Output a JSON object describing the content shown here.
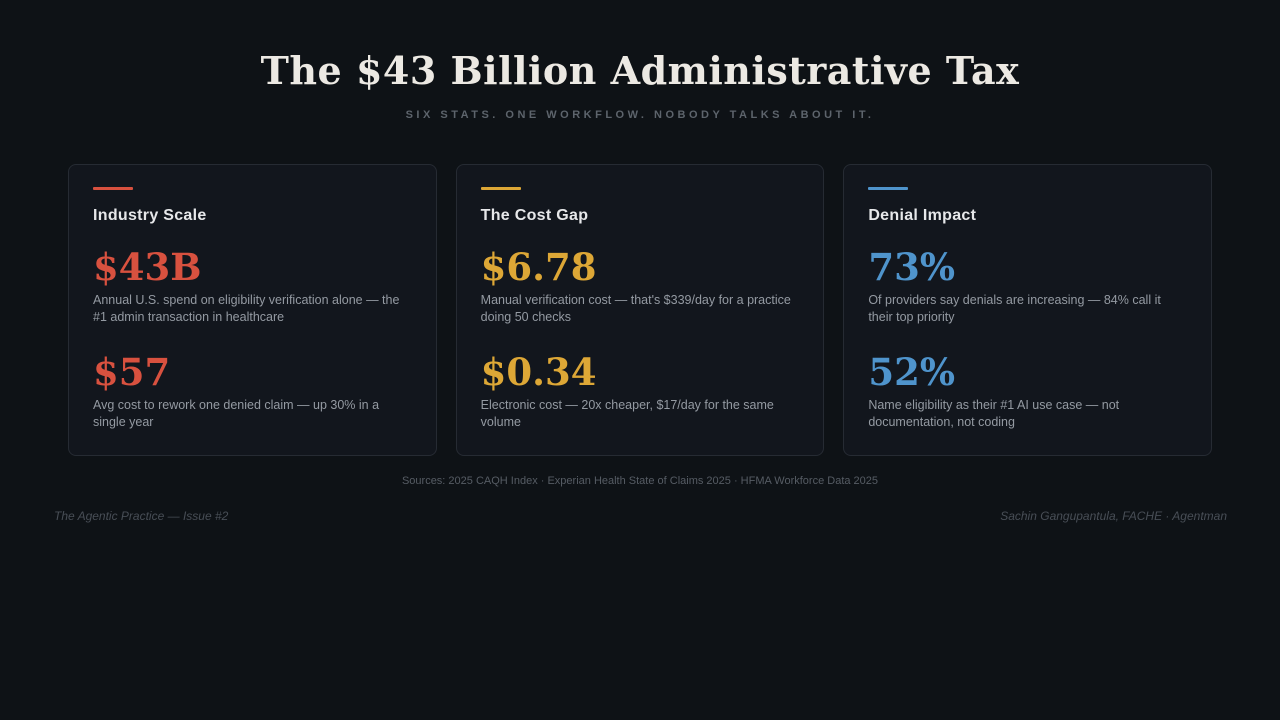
{
  "page": {
    "title": "The $43 Billion Administrative Tax",
    "subtitle": "SIX STATS. ONE WORKFLOW. NOBODY TALKS ABOUT IT.",
    "sources": "Sources: 2025 CAQH Index · Experian Health State of Claims 2025 · HFMA Workforce Data 2025",
    "footer_left": "The Agentic Practice — Issue #2",
    "footer_right": "Sachin Gangupantula, FACHE · Agentman"
  },
  "colors": {
    "background": "#0e1216",
    "card_background": "#12161d",
    "card_border": "#262b33",
    "red_accent": "#d8513f",
    "gold_accent": "#dda736",
    "blue_accent": "#4f94cc"
  },
  "cards": [
    {
      "title": "Industry Scale",
      "accent_color": "#d8513f",
      "stats": [
        {
          "value": "$43B",
          "description": "Annual U.S. spend on eligibility verification alone — the #1 admin transaction in healthcare"
        },
        {
          "value": "$57",
          "description": "Avg cost to rework one denied claim — up 30% in a single year"
        }
      ]
    },
    {
      "title": "The Cost Gap",
      "accent_color": "#dda736",
      "stats": [
        {
          "value": "$6.78",
          "description": "Manual verification cost — that's $339/day for a practice doing 50 checks"
        },
        {
          "value": "$0.34",
          "description": "Electronic cost — 20x cheaper, $17/day for the same volume"
        }
      ]
    },
    {
      "title": "Denial Impact",
      "accent_color": "#4f94cc",
      "stats": [
        {
          "value": "73%",
          "description": "Of providers say denials are increasing — 84% call it their top priority"
        },
        {
          "value": "52%",
          "description": "Name eligibility as their #1 AI use case — not documentation, not coding"
        }
      ]
    }
  ]
}
